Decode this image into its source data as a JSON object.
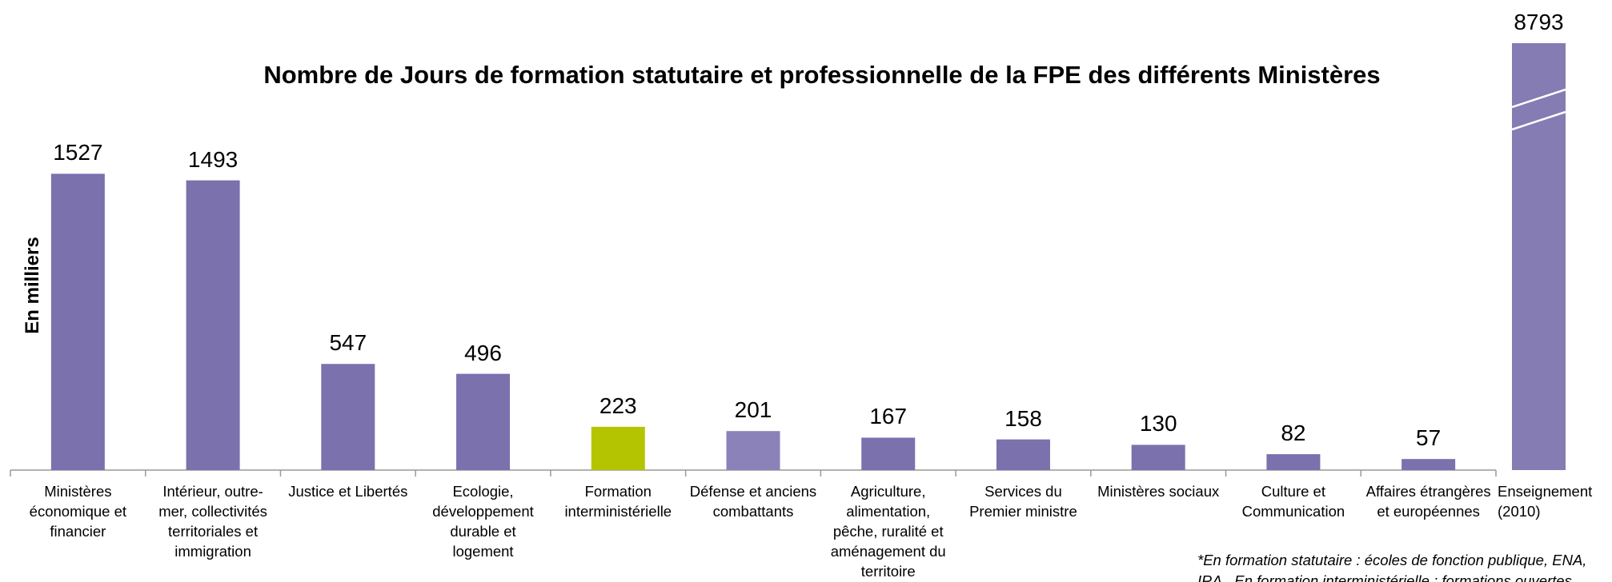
{
  "chart_data": {
    "type": "bar",
    "title": "Nombre de Jours de formation statutaire et professionnelle de la FPE des différents Ministères",
    "y_label": "En milliers",
    "categories": [
      "Ministères économique et financier",
      "Intérieur, outre-mer, collectivités territoriales et immigration",
      "Justice et Libertés",
      "Ecologie, développement durable et logement",
      "Formation interministérielle",
      "Défense et anciens combattants",
      "Agriculture, alimentation, pêche, ruralité et aménagement du territoire",
      "Services du Premier ministre",
      "Ministères sociaux",
      "Culture et Communication",
      "Affaires étrangères et européennes",
      "Enseignement (2010)"
    ],
    "values": [
      1527,
      1493,
      547,
      496,
      223,
      201,
      167,
      158,
      130,
      82,
      57,
      8793
    ],
    "colors": [
      "#7a71ad",
      "#7a71ad",
      "#7a71ad",
      "#7a71ad",
      "#b5c400",
      "#8a82b8",
      "#7a71ad",
      "#7a71ad",
      "#7a71ad",
      "#7a71ad",
      "#7a71ad",
      "#857cb3"
    ],
    "ylim": [
      0,
      2200
    ],
    "axis_break": true,
    "footnote": [
      "*En formation statutaire : écoles de fonction publique, ENA,",
      "IRA.. En formation interministérielle : formations ouvertes"
    ]
  }
}
